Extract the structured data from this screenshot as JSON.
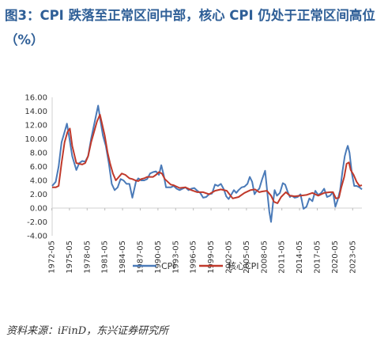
{
  "figure": {
    "title": "图3：CPI 跌落至正常区间中部，核心 CPI 仍处于正常区间高位（%）",
    "source": "资料来源：iFinD，东兴证券研究所"
  },
  "chart_data": {
    "type": "line",
    "title": "图3：CPI 跌落至正常区间中部，核心 CPI 仍处于正常区间高位（%）",
    "ylim": [
      -4,
      16
    ],
    "yticks": [
      "16.00",
      "14.00",
      "12.00",
      "10.00",
      "8.00",
      "6.00",
      "4.00",
      "2.00",
      "0.00",
      "-2.00",
      "-4.00"
    ],
    "xticks": [
      "1972-05",
      "1975-05",
      "1978-05",
      "1981-05",
      "1984-05",
      "1987-05",
      "1990-05",
      "1993-05",
      "1996-05",
      "1999-05",
      "2002-05",
      "2005-05",
      "2008-05",
      "2011-05",
      "2014-05",
      "2017-05",
      "2020-05",
      "2023-05"
    ],
    "grid": false,
    "legend_position": "bottom",
    "series": [
      {
        "name": "CPI",
        "color": "#4a7ab8",
        "x": [
          1972.4,
          1973.0,
          1973.5,
          1974.0,
          1974.5,
          1974.9,
          1975.3,
          1975.8,
          1976.5,
          1977.0,
          1977.5,
          1978.0,
          1978.5,
          1979.0,
          1979.5,
          1980.0,
          1980.2,
          1980.6,
          1981.0,
          1981.5,
          1982.0,
          1982.5,
          1983.0,
          1983.5,
          1984.0,
          1984.5,
          1985.0,
          1985.5,
          1986.0,
          1986.6,
          1987.0,
          1987.5,
          1988.0,
          1988.5,
          1989.0,
          1989.5,
          1990.0,
          1990.5,
          1990.9,
          1991.3,
          1991.7,
          1992.0,
          1992.5,
          1993.0,
          1993.5,
          1994.0,
          1994.5,
          1995.0,
          1995.5,
          1996.0,
          1996.5,
          1997.0,
          1997.5,
          1998.0,
          1998.5,
          1999.0,
          1999.5,
          2000.0,
          2000.5,
          2001.0,
          2001.5,
          2001.9,
          2002.3,
          2002.8,
          2003.2,
          2003.6,
          2004.0,
          2004.5,
          2005.0,
          2005.5,
          2005.9,
          2006.3,
          2006.7,
          2007.0,
          2007.5,
          2008.0,
          2008.5,
          2008.9,
          2009.2,
          2009.5,
          2009.8,
          2010.1,
          2010.5,
          2011.0,
          2011.5,
          2011.9,
          2012.3,
          2012.7,
          2013.0,
          2013.5,
          2014.0,
          2014.5,
          2015.0,
          2015.5,
          2016.0,
          2016.5,
          2017.0,
          2017.5,
          2018.0,
          2018.5,
          2019.0,
          2019.5,
          2020.0,
          2020.4,
          2020.8,
          2021.2,
          2021.6,
          2022.0,
          2022.3,
          2022.5,
          2022.8,
          2023.2,
          2023.6,
          2024.0,
          2024.5,
          2024.9
        ],
        "values": [
          3.2,
          3.8,
          6.0,
          9.5,
          11.0,
          12.2,
          10.2,
          7.5,
          5.5,
          6.5,
          6.8,
          6.7,
          7.5,
          10.0,
          12.0,
          14.0,
          14.8,
          12.6,
          10.5,
          9.0,
          6.5,
          3.5,
          2.6,
          3.0,
          4.2,
          4.0,
          3.5,
          3.5,
          1.5,
          3.8,
          4.3,
          4.0,
          4.0,
          4.2,
          5.0,
          5.2,
          5.3,
          4.8,
          6.2,
          4.8,
          3.0,
          3.0,
          3.0,
          3.2,
          2.8,
          2.6,
          2.8,
          3.0,
          2.6,
          2.8,
          2.9,
          2.5,
          2.2,
          1.5,
          1.6,
          2.0,
          2.1,
          3.4,
          3.2,
          3.5,
          2.7,
          1.7,
          1.3,
          2.0,
          2.6,
          2.2,
          2.6,
          3.0,
          3.1,
          3.5,
          4.5,
          3.8,
          2.0,
          2.4,
          2.8,
          4.2,
          5.4,
          2.0,
          -0.5,
          -2.0,
          0.5,
          2.6,
          1.8,
          2.2,
          3.6,
          3.4,
          2.4,
          1.6,
          1.8,
          1.5,
          1.6,
          2.0,
          -0.1,
          0.2,
          1.4,
          1.0,
          2.5,
          1.9,
          2.2,
          2.8,
          1.6,
          1.8,
          2.3,
          0.2,
          1.2,
          2.6,
          5.3,
          7.5,
          8.5,
          9.0,
          8.0,
          5.0,
          3.2,
          3.2,
          3.0,
          2.7
        ]
      },
      {
        "name": "核心CPI",
        "color": "#c0392b",
        "x": [
          1972.4,
          1973.0,
          1973.5,
          1974.0,
          1974.5,
          1975.0,
          1975.4,
          1975.8,
          1976.5,
          1977.0,
          1977.5,
          1978.0,
          1978.5,
          1979.0,
          1979.5,
          1980.0,
          1980.5,
          1980.9,
          1981.3,
          1981.8,
          1982.2,
          1982.7,
          1983.2,
          1983.7,
          1984.2,
          1984.8,
          1985.5,
          1986.0,
          1986.5,
          1987.0,
          1987.5,
          1988.0,
          1988.5,
          1989.0,
          1989.5,
          1990.0,
          1990.5,
          1991.0,
          1991.5,
          1992.0,
          1992.5,
          1993.0,
          1994.0,
          1995.0,
          1996.0,
          1997.0,
          1998.0,
          1999.0,
          2000.0,
          2001.0,
          2002.0,
          2003.0,
          2004.0,
          2005.0,
          2006.0,
          2006.8,
          2007.5,
          2008.0,
          2008.8,
          2009.5,
          2010.0,
          2010.6,
          2011.2,
          2012.0,
          2012.7,
          2013.5,
          2014.5,
          2015.5,
          2016.5,
          2017.5,
          2018.5,
          2019.5,
          2020.0,
          2020.5,
          2021.0,
          2021.4,
          2021.9,
          2022.3,
          2022.7,
          2023.0,
          2023.5,
          2024.0,
          2024.5,
          2024.9
        ],
        "values": [
          3.0,
          3.0,
          3.2,
          6.5,
          9.5,
          11.0,
          11.5,
          9.0,
          6.5,
          6.4,
          6.3,
          6.5,
          7.5,
          9.5,
          11.0,
          12.5,
          13.5,
          12.0,
          10.5,
          8.0,
          6.5,
          5.0,
          4.0,
          4.5,
          5.0,
          4.8,
          4.3,
          4.2,
          4.0,
          3.9,
          4.2,
          4.3,
          4.5,
          4.5,
          4.5,
          4.8,
          5.2,
          5.0,
          4.2,
          3.8,
          3.4,
          3.3,
          2.9,
          3.0,
          2.6,
          2.3,
          2.3,
          2.0,
          2.5,
          2.7,
          2.5,
          1.4,
          1.6,
          2.2,
          2.6,
          2.7,
          2.3,
          2.4,
          2.5,
          1.8,
          0.9,
          0.7,
          1.6,
          2.3,
          1.8,
          1.7,
          1.8,
          1.9,
          2.2,
          1.8,
          2.2,
          2.3,
          2.3,
          1.4,
          1.5,
          3.0,
          4.5,
          6.4,
          6.6,
          5.5,
          4.8,
          3.8,
          3.2,
          3.3
        ]
      }
    ]
  }
}
